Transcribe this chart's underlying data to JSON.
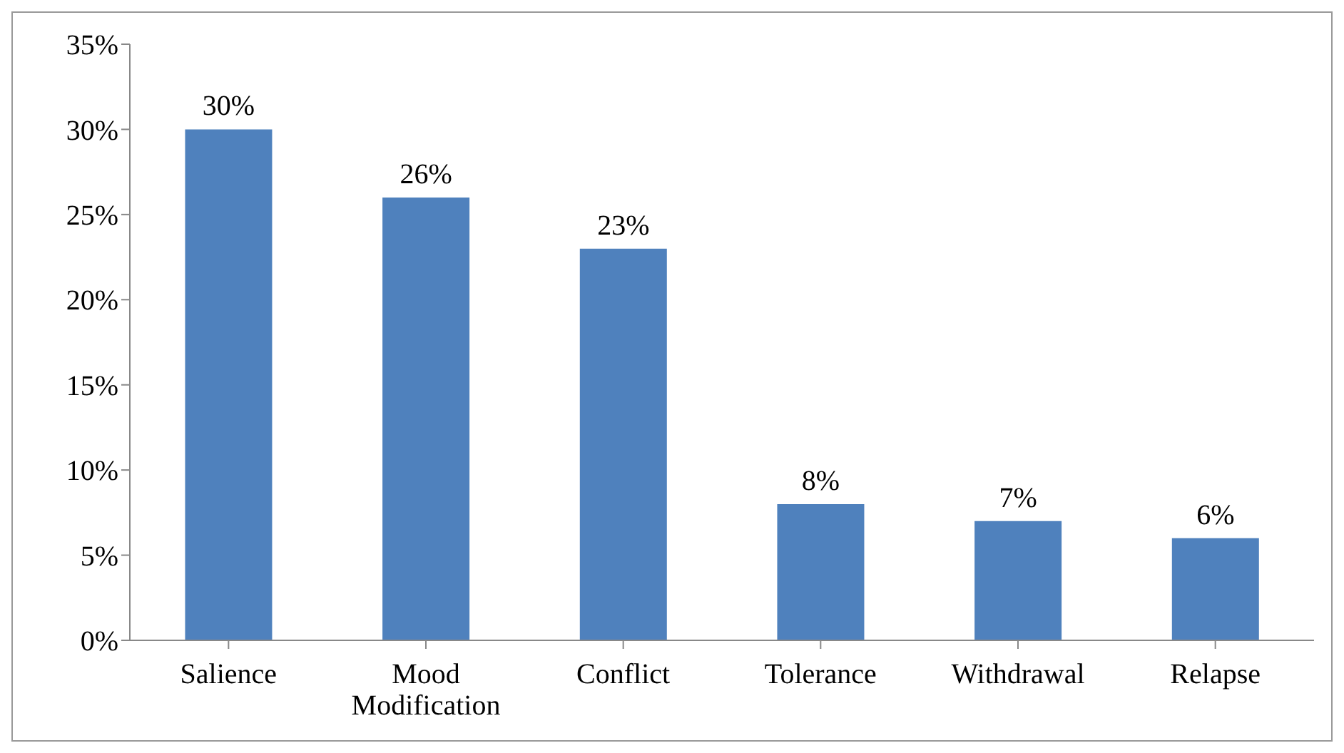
{
  "chart_data": {
    "type": "bar",
    "categories": [
      "Salience",
      "Mood Modification",
      "Conflict",
      "Tolerance",
      "Withdrawal",
      "Relapse"
    ],
    "values": [
      30,
      26,
      23,
      8,
      7,
      6
    ],
    "value_labels": [
      "30%",
      "26%",
      "23%",
      "8%",
      "7%",
      "6%"
    ],
    "color": "#4f81bd",
    "ylim": [
      0,
      35
    ],
    "yticks": [
      {
        "value": 0,
        "label": "0%"
      },
      {
        "value": 5,
        "label": "5%"
      },
      {
        "value": 10,
        "label": "10%"
      },
      {
        "value": 15,
        "label": "15%"
      },
      {
        "value": 20,
        "label": "20%"
      },
      {
        "value": 25,
        "label": "25%"
      },
      {
        "value": 30,
        "label": "30%"
      },
      {
        "value": 35,
        "label": "35%"
      }
    ],
    "grid": false,
    "legend": false
  }
}
